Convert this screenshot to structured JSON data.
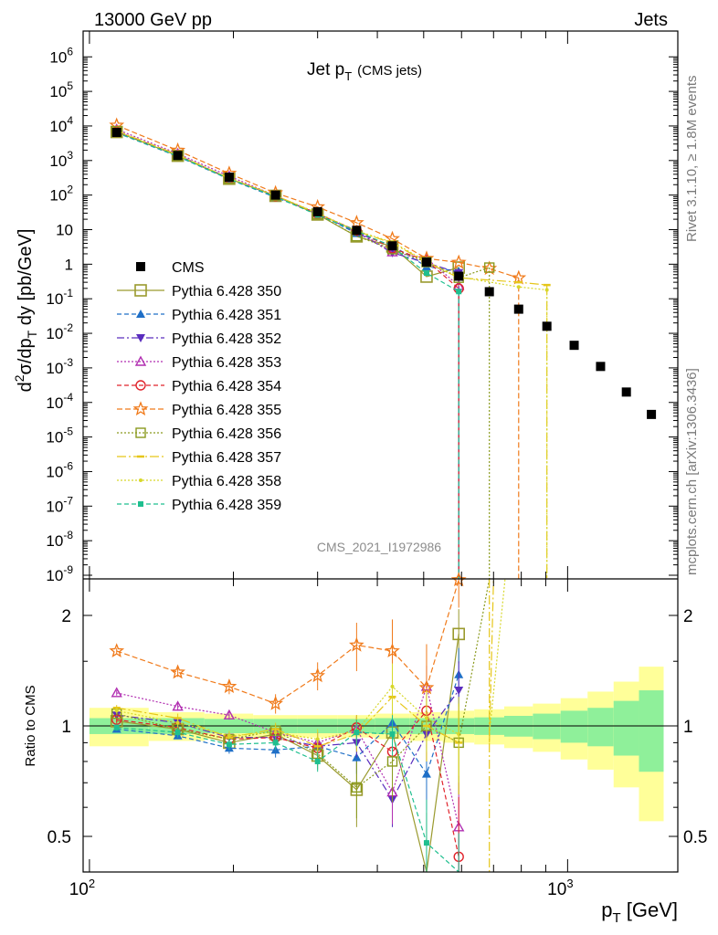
{
  "header": {
    "left": "13000 GeV pp",
    "right": "Jets"
  },
  "side_labels": {
    "rivet": "Rivet 3.1.10, ≥ 1.8M events",
    "mcplots": "mcplots.cern.ch [arXiv:1306.3436]"
  },
  "analysis_tag": "CMS_2021_I1972986",
  "title": {
    "main": "Jet p",
    "sub": "T",
    "suffix": "(CMS jets)"
  },
  "axes": {
    "ylabel_main": "d²σ/dp_T dy [pb/GeV]",
    "ylabel_ratio": "Ratio to CMS",
    "xlabel": "p_T [GeV]"
  },
  "legend": [
    {
      "label": "CMS",
      "color": "#000000",
      "marker": "square-filled"
    },
    {
      "label": "Pythia 6.428 350",
      "color": "#9a9a2e",
      "marker": "square-open"
    },
    {
      "label": "Pythia 6.428 351",
      "color": "#1f6fc7",
      "marker": "triangle-up-filled"
    },
    {
      "label": "Pythia 6.428 352",
      "color": "#5a2dbe",
      "marker": "triangle-down-filled"
    },
    {
      "label": "Pythia 6.428 353",
      "color": "#b12fb1",
      "marker": "triangle-up-open"
    },
    {
      "label": "Pythia 6.428 354",
      "color": "#e0232b",
      "marker": "circle-open"
    },
    {
      "label": "Pythia 6.428 355",
      "color": "#f07a1a",
      "marker": "star-open"
    },
    {
      "label": "Pythia 6.428 356",
      "color": "#8a9a1e",
      "marker": "square-open-small"
    },
    {
      "label": "Pythia 6.428 357",
      "color": "#e6c619",
      "marker": "dash"
    },
    {
      "label": "Pythia 6.428 358",
      "color": "#d7d72a",
      "marker": "dot"
    },
    {
      "label": "Pythia 6.428 359",
      "color": "#1fbf8f",
      "marker": "square-filled-small"
    }
  ],
  "chart_data": {
    "type": "line",
    "title": "Jet pT (CMS jets)",
    "xlabel": "pT [GeV]",
    "ylabel": "d2sigma/dpT dy [pb/GeV]",
    "xscale": "log",
    "yscale": "log",
    "xlim": [
      97,
      1700
    ],
    "ylim": [
      1e-09,
      3000000.0
    ],
    "ratio_ylim": [
      0.35,
      2.3
    ],
    "x_ticks": [
      "10^2",
      "10^3"
    ],
    "y_ticks": [
      "10^6",
      "10^5",
      "10^4",
      "10^3",
      "10^2",
      "10",
      "1",
      "10^-1",
      "10^-2",
      "10^-3",
      "10^-4",
      "10^-5",
      "10^-6",
      "10^-7",
      "10^-8",
      "10^-9"
    ],
    "ratio_ticks": [
      "2",
      "1",
      "0.5"
    ],
    "x": [
      114,
      153,
      196,
      245,
      300,
      362,
      430,
      507,
      592,
      686,
      790,
      905,
      1032,
      1172,
      1327,
      1497
    ],
    "data": [
      6500,
      1400,
      330,
      100,
      33,
      9.5,
      3.4,
      1.15,
      0.45,
      0.16,
      0.05,
      0.016,
      0.0045,
      0.0011,
      0.0002,
      4.5e-05
    ],
    "band_edges": [
      100,
      133,
      174,
      220,
      272,
      330,
      395,
      468,
      548,
      638,
      737,
      846,
      967,
      1101,
      1248,
      1410,
      1588
    ],
    "band_inner": [
      0.05,
      0.05,
      0.045,
      0.045,
      0.045,
      0.045,
      0.05,
      0.05,
      0.05,
      0.055,
      0.065,
      0.08,
      0.1,
      0.12,
      0.17,
      0.25
    ],
    "band_outer": [
      0.12,
      0.09,
      0.08,
      0.07,
      0.07,
      0.07,
      0.08,
      0.09,
      0.1,
      0.11,
      0.13,
      0.15,
      0.19,
      0.24,
      0.32,
      0.45
    ],
    "series": [
      {
        "name": "Pythia 6.428 350",
        "ratio": [
          1.03,
          0.98,
          0.9,
          0.95,
          0.83,
          0.67,
          0.96,
          0.38,
          1.78
        ],
        "err": [
          0.02,
          0.03,
          0.03,
          0.05,
          0.07,
          0.14,
          0.25,
          0.2,
          0.3
        ]
      },
      {
        "name": "Pythia 6.428 351",
        "ratio": [
          0.98,
          0.94,
          0.87,
          0.86,
          0.88,
          0.82,
          1.02,
          0.74,
          1.38
        ],
        "err": [
          0.02,
          0.02,
          0.03,
          0.04,
          0.05,
          0.08,
          0.12,
          0.15,
          0.25
        ]
      },
      {
        "name": "Pythia 6.428 352",
        "ratio": [
          1.07,
          1.02,
          0.93,
          0.93,
          0.88,
          0.9,
          0.63,
          0.95,
          1.25
        ],
        "err": [
          0.02,
          0.03,
          0.03,
          0.04,
          0.05,
          0.08,
          0.1,
          0.15,
          0.25
        ]
      },
      {
        "name": "Pythia 6.428 353",
        "ratio": [
          1.23,
          1.13,
          1.07,
          0.96,
          0.9,
          0.98,
          0.66,
          1.28,
          0.53
        ],
        "err": [
          0.02,
          0.03,
          0.03,
          0.04,
          0.06,
          0.08,
          0.12,
          0.18,
          0.2
        ]
      },
      {
        "name": "Pythia 6.428 354",
        "ratio": [
          1.04,
          0.99,
          0.92,
          0.93,
          0.87,
          0.99,
          0.85,
          1.1,
          0.44
        ],
        "err": [
          0.02,
          0.03,
          0.03,
          0.04,
          0.05,
          0.08,
          0.1,
          0.15,
          0.2
        ]
      },
      {
        "name": "Pythia 6.428 355",
        "ratio": [
          1.6,
          1.4,
          1.28,
          1.15,
          1.37,
          1.66,
          1.6,
          1.27,
          2.5
        ],
        "err": [
          0.03,
          0.04,
          0.06,
          0.07,
          0.12,
          0.25,
          0.35,
          0.4,
          0.4
        ]
      },
      {
        "name": "Pythia 6.428 356",
        "ratio": [
          1.08,
          0.98,
          0.92,
          0.97,
          0.84,
          0.68,
          0.8,
          1.0,
          0.9
        ],
        "err": [
          0.02,
          0.03,
          0.03,
          0.04,
          0.06,
          0.12,
          0.18,
          0.2,
          0.25
        ]
      },
      {
        "name": "Pythia 6.428 357",
        "ratio": [
          1.12,
          1.05,
          0.93,
          0.98,
          0.88,
          0.95,
          1.2,
          1.0,
          0.9
        ],
        "err": [
          0.02,
          0.03,
          0.03,
          0.04,
          0.06,
          0.1,
          0.2,
          0.2,
          0.25
        ]
      },
      {
        "name": "Pythia 6.428 358",
        "ratio": [
          1.1,
          1.02,
          0.94,
          0.96,
          0.92,
          0.97,
          1.28,
          1.05,
          0.95
        ],
        "err": [
          0.02,
          0.03,
          0.03,
          0.04,
          0.06,
          0.1,
          0.2,
          0.2,
          0.25
        ]
      },
      {
        "name": "Pythia 6.428 359",
        "ratio": [
          0.99,
          0.96,
          0.89,
          0.9,
          0.8,
          0.96,
          0.95,
          0.48,
          0.36
        ],
        "err": [
          0.02,
          0.03,
          0.03,
          0.04,
          0.05,
          0.08,
          0.12,
          0.15,
          0.15
        ]
      }
    ],
    "extra_points": {
      "Pythia 6.428 356": {
        "x": [
          686
        ],
        "y": [
          0.8
        ]
      },
      "Pythia 6.428 355": {
        "x": [
          686,
          790
        ],
        "y": [
          0.75,
          0.4
        ]
      },
      "Pythia 6.428 357": {
        "x": [
          790,
          905
        ],
        "y": [
          0.3,
          0.25
        ]
      },
      "Pythia 6.428 358": {
        "x": [
          790,
          905
        ],
        "y": [
          0.22,
          0.18
        ]
      }
    }
  }
}
